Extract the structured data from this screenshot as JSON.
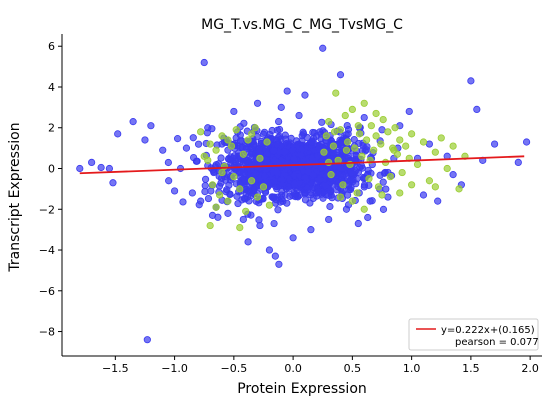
{
  "chart_data": {
    "type": "scatter",
    "title": "MG_T.vs.MG_C_MG_TvsMG_C",
    "xlabel": "Protein Expression",
    "ylabel": "Transcript Expression",
    "xlim": [
      -1.95,
      2.1
    ],
    "ylim": [
      -9.2,
      6.6
    ],
    "xticks": [
      -1.5,
      -1.0,
      -0.5,
      0.0,
      0.5,
      1.0,
      1.5,
      2.0
    ],
    "xtick_labels": [
      "−1.5",
      "−1.0",
      "−0.5",
      "0.0",
      "0.5",
      "1.0",
      "1.5",
      "2.0"
    ],
    "yticks": [
      -8,
      -6,
      -4,
      -2,
      0,
      2,
      4,
      6
    ],
    "ytick_labels": [
      "−8",
      "−6",
      "−4",
      "−2",
      "0",
      "2",
      "4",
      "6"
    ],
    "grid": false,
    "legend_position": "bottom-right",
    "colors": {
      "blue": "#3a3aef",
      "green": "#9acd32",
      "fit_line": "#e41a1c"
    },
    "regression": {
      "slope": 0.222,
      "intercept": 0.165,
      "x_range": [
        -1.8,
        1.95
      ]
    },
    "legend": {
      "fit_label": "y=0.222x+(0.165)",
      "pearson_label": "pearson = 0.077"
    },
    "series": [
      {
        "color_key": "blue",
        "core": {
          "n": 1700,
          "mean_x": 0.0,
          "sd_x": 0.28,
          "mean_y": 0.1,
          "sd_y": 0.6
        },
        "points": [
          [
            -1.8,
            0.0
          ],
          [
            -1.7,
            0.3
          ],
          [
            -1.62,
            0.05
          ],
          [
            -1.55,
            0.0
          ],
          [
            -1.52,
            -0.7
          ],
          [
            -1.48,
            1.7
          ],
          [
            -1.35,
            2.3
          ],
          [
            -1.25,
            1.4
          ],
          [
            -1.2,
            2.1
          ],
          [
            -1.1,
            0.9
          ],
          [
            -1.05,
            -0.6
          ],
          [
            -1.0,
            -1.1
          ],
          [
            -0.95,
            0.0
          ],
          [
            -0.9,
            1.0
          ],
          [
            -0.85,
            -1.2
          ],
          [
            -0.78,
            -1.6
          ],
          [
            -0.75,
            5.2
          ],
          [
            -0.72,
            2.0
          ],
          [
            -0.68,
            -2.3
          ],
          [
            -0.65,
            -1.9
          ],
          [
            -0.6,
            1.2
          ],
          [
            -0.55,
            -2.2
          ],
          [
            -0.5,
            2.8
          ],
          [
            -0.45,
            -1.0
          ],
          [
            -0.42,
            -2.5
          ],
          [
            -0.38,
            -3.6
          ],
          [
            -0.35,
            1.3
          ],
          [
            -0.3,
            3.2
          ],
          [
            -0.28,
            -2.8
          ],
          [
            -0.2,
            -4.0
          ],
          [
            -0.15,
            -4.3
          ],
          [
            -0.12,
            -4.7
          ],
          [
            -0.1,
            3.0
          ],
          [
            -0.05,
            3.8
          ],
          [
            0.0,
            -3.4
          ],
          [
            0.05,
            2.6
          ],
          [
            0.1,
            3.6
          ],
          [
            0.15,
            -3.0
          ],
          [
            0.25,
            5.9
          ],
          [
            0.3,
            -2.5
          ],
          [
            0.4,
            4.6
          ],
          [
            0.45,
            -2.0
          ],
          [
            0.55,
            -2.7
          ],
          [
            0.6,
            2.5
          ],
          [
            0.65,
            -1.6
          ],
          [
            0.75,
            1.9
          ],
          [
            0.8,
            -1.4
          ],
          [
            0.9,
            2.1
          ],
          [
            0.98,
            2.8
          ],
          [
            1.05,
            0.5
          ],
          [
            1.1,
            -1.3
          ],
          [
            1.15,
            1.2
          ],
          [
            1.22,
            -1.6
          ],
          [
            1.3,
            0.6
          ],
          [
            1.35,
            -0.3
          ],
          [
            1.42,
            -0.8
          ],
          [
            1.5,
            4.3
          ],
          [
            1.55,
            2.9
          ],
          [
            1.6,
            0.4
          ],
          [
            1.7,
            1.2
          ],
          [
            1.9,
            0.3
          ],
          [
            1.97,
            1.3
          ],
          [
            -1.23,
            -8.4
          ],
          [
            -0.55,
            0.9
          ],
          [
            0.85,
            0.5
          ]
        ]
      },
      {
        "color_key": "green",
        "points": [
          [
            -0.78,
            1.8
          ],
          [
            -0.72,
            0.4
          ],
          [
            -0.7,
            1.2
          ],
          [
            -0.68,
            -0.8
          ],
          [
            -0.65,
            0.9
          ],
          [
            -0.62,
            -1.3
          ],
          [
            -0.6,
            1.6
          ],
          [
            -0.58,
            0.1
          ],
          [
            -0.55,
            -1.6
          ],
          [
            -0.52,
            1.1
          ],
          [
            -0.5,
            -0.4
          ],
          [
            -0.48,
            1.9
          ],
          [
            -0.45,
            -1.0
          ],
          [
            -0.42,
            0.7
          ],
          [
            -0.4,
            -2.1
          ],
          [
            -0.38,
            1.4
          ],
          [
            -0.35,
            -0.6
          ],
          [
            -0.32,
            2.0
          ],
          [
            -0.3,
            -1.4
          ],
          [
            -0.28,
            0.5
          ],
          [
            -0.25,
            -0.9
          ],
          [
            -0.22,
            1.3
          ],
          [
            -0.2,
            -1.8
          ],
          [
            -0.7,
            -2.8
          ],
          [
            -0.45,
            -2.9
          ],
          [
            -0.65,
            -1.9
          ],
          [
            -0.35,
            1.7
          ],
          [
            -0.6,
            -0.2
          ],
          [
            -0.75,
            0.6
          ],
          [
            -0.55,
            1.4
          ],
          [
            0.26,
            0.8
          ],
          [
            0.28,
            1.6
          ],
          [
            0.3,
            2.3
          ],
          [
            0.32,
            -0.3
          ],
          [
            0.34,
            1.1
          ],
          [
            0.36,
            3.7
          ],
          [
            0.38,
            0.4
          ],
          [
            0.4,
            1.9
          ],
          [
            0.42,
            -0.8
          ],
          [
            0.44,
            2.6
          ],
          [
            0.46,
            1.3
          ],
          [
            0.48,
            0.2
          ],
          [
            0.5,
            2.9
          ],
          [
            0.52,
            1.0
          ],
          [
            0.54,
            -1.2
          ],
          [
            0.56,
            1.7
          ],
          [
            0.58,
            0.6
          ],
          [
            0.6,
            3.2
          ],
          [
            0.62,
            1.4
          ],
          [
            0.64,
            -0.5
          ],
          [
            0.66,
            2.1
          ],
          [
            0.68,
            0.9
          ],
          [
            0.7,
            1.6
          ],
          [
            0.72,
            -0.9
          ],
          [
            0.74,
            1.2
          ],
          [
            0.76,
            2.4
          ],
          [
            0.78,
            0.3
          ],
          [
            0.8,
            1.8
          ],
          [
            0.82,
            -0.4
          ],
          [
            0.84,
            1.0
          ],
          [
            0.86,
            2.0
          ],
          [
            0.88,
            0.7
          ],
          [
            0.9,
            1.4
          ],
          [
            0.92,
            -0.2
          ],
          [
            0.95,
            1.1
          ],
          [
            0.98,
            0.5
          ],
          [
            1.0,
            1.7
          ],
          [
            1.05,
            0.2
          ],
          [
            1.1,
            1.3
          ],
          [
            1.15,
            -0.6
          ],
          [
            1.2,
            0.8
          ],
          [
            1.25,
            1.5
          ],
          [
            1.3,
            0.0
          ],
          [
            1.35,
            1.1
          ],
          [
            1.4,
            -1.0
          ],
          [
            1.45,
            0.6
          ],
          [
            1.2,
            -0.9
          ],
          [
            0.5,
            -1.6
          ],
          [
            0.6,
            -2.0
          ],
          [
            0.75,
            -1.3
          ],
          [
            0.9,
            -1.2
          ],
          [
            1.0,
            -0.8
          ],
          [
            0.4,
            -1.4
          ],
          [
            0.55,
            2.1
          ],
          [
            0.3,
            0.3
          ],
          [
            0.45,
            0.9
          ],
          [
            0.65,
            0.4
          ],
          [
            0.85,
            0.9
          ],
          [
            0.35,
            1.8
          ],
          [
            0.7,
            2.7
          ]
        ]
      }
    ]
  }
}
